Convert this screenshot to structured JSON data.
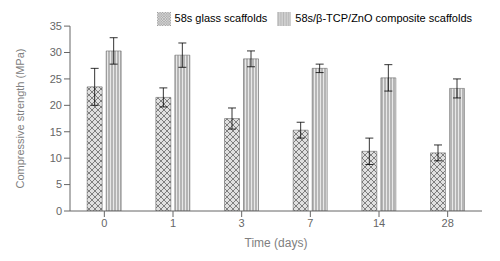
{
  "chart_data": {
    "type": "bar",
    "categories": [
      "0",
      "1",
      "3",
      "7",
      "14",
      "28"
    ],
    "series": [
      {
        "name": "58s glass scaffolds",
        "color": "#e0e0e0",
        "values": [
          23.5,
          21.5,
          17.5,
          15.3,
          11.3,
          11.0
        ],
        "errors": [
          3.5,
          1.8,
          2.0,
          1.5,
          2.5,
          1.5
        ]
      },
      {
        "name": "58s/β-TCP/ZnO composite scaffolds",
        "color": "#e8e8e8",
        "values": [
          30.3,
          29.5,
          28.8,
          27.0,
          25.2,
          23.2
        ],
        "errors": [
          2.5,
          2.3,
          1.5,
          0.8,
          2.5,
          1.8
        ]
      }
    ],
    "xlabel": "Time (days)",
    "ylabel": "Compressive strength (MPa)",
    "ylim": [
      0,
      35
    ],
    "yticks": [
      0,
      5,
      10,
      15,
      20,
      25,
      30,
      35
    ],
    "legend": "upper right",
    "grid": false
  }
}
